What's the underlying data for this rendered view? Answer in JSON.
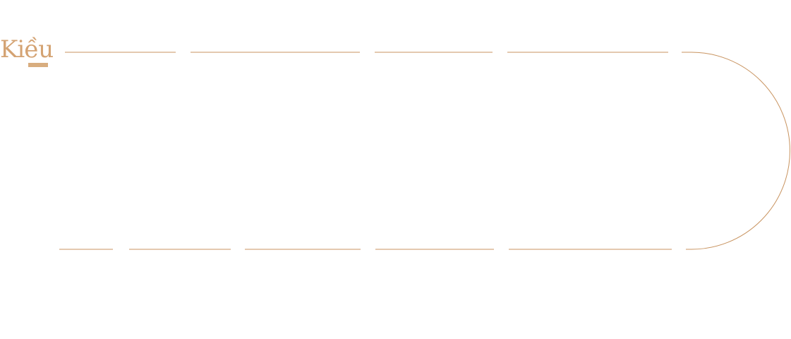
{
  "logo": {
    "text": "Kiều"
  },
  "colors": {
    "accent": "#c8935f"
  }
}
